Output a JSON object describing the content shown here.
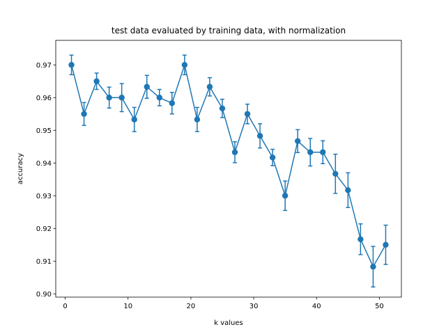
{
  "chart_data": {
    "type": "line",
    "title": "test data evaluated by training data, with normalization",
    "xlabel": "k values",
    "ylabel": "accuracy",
    "xlim": [
      -1.5,
      53.5
    ],
    "ylim": [
      0.899,
      0.9775
    ],
    "xticks": [
      0,
      10,
      20,
      30,
      40,
      50
    ],
    "yticks": [
      0.9,
      0.91,
      0.92,
      0.93,
      0.94,
      0.95,
      0.96,
      0.97
    ],
    "ytick_labels": [
      "0.90",
      "0.91",
      "0.92",
      "0.93",
      "0.94",
      "0.95",
      "0.96",
      "0.97"
    ],
    "grid": false,
    "color": "#1f77b4",
    "series": [
      {
        "x": [
          1,
          3,
          5,
          7,
          9,
          11,
          13,
          15,
          17,
          19,
          21,
          23,
          25,
          27,
          29,
          31,
          33,
          35,
          37,
          39,
          41,
          43,
          45,
          47,
          49,
          51
        ],
        "y": [
          0.97,
          0.955,
          0.965,
          0.96,
          0.96,
          0.9533,
          0.9633,
          0.96,
          0.9583,
          0.97,
          0.9533,
          0.9633,
          0.9567,
          0.9433,
          0.955,
          0.9483,
          0.9417,
          0.93,
          0.9467,
          0.9433,
          0.9433,
          0.9367,
          0.9317,
          0.9167,
          0.9083,
          0.915
        ],
        "error": [
          0.003,
          0.0035,
          0.0025,
          0.0032,
          0.0043,
          0.0037,
          0.0035,
          0.0025,
          0.0033,
          0.003,
          0.0037,
          0.0028,
          0.0028,
          0.0032,
          0.003,
          0.0037,
          0.0025,
          0.0045,
          0.0035,
          0.0042,
          0.0035,
          0.006,
          0.0053,
          0.0047,
          0.0062,
          0.006
        ]
      }
    ]
  }
}
